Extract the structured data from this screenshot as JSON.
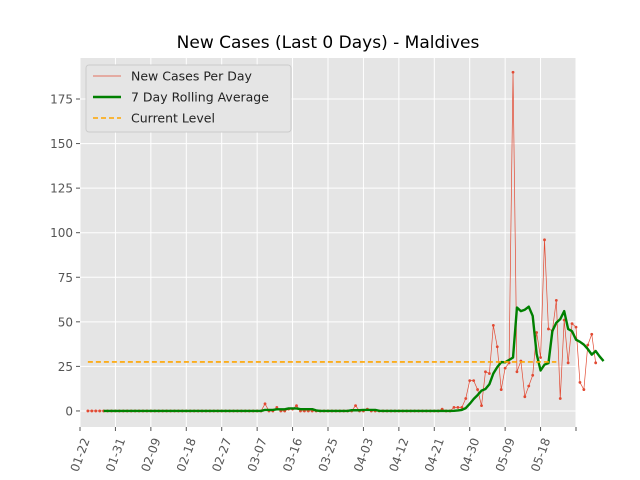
{
  "chart_data": {
    "type": "line",
    "title": "New Cases (Last 0 Days) - Maldives",
    "xlabel": "",
    "ylabel": "",
    "x_tick_labels": [
      "01-22",
      "01-31",
      "02-09",
      "02-18",
      "02-27",
      "03-07",
      "03-16",
      "03-25",
      "04-03",
      "04-12",
      "04-21",
      "04-30",
      "05-09",
      "05-18"
    ],
    "y_tick_labels": [
      "0",
      "25",
      "50",
      "75",
      "100",
      "125",
      "150",
      "175"
    ],
    "ylim": [
      -9,
      198
    ],
    "grid": true,
    "legend_position": "top-left",
    "start_date": "2020-01-22",
    "series": [
      {
        "name": "New Cases Per Day",
        "color": "#e24a33",
        "style": "thin-line-with-points",
        "start": "2020-01-24",
        "values": [
          0,
          0,
          0,
          0,
          0,
          0,
          0,
          0,
          0,
          0,
          0,
          0,
          0,
          0,
          0,
          0,
          0,
          0,
          0,
          0,
          0,
          0,
          0,
          0,
          0,
          0,
          0,
          0,
          0,
          0,
          0,
          0,
          0,
          0,
          0,
          0,
          0,
          0,
          0,
          0,
          0,
          0,
          0,
          0,
          0,
          4,
          0,
          0,
          2,
          0,
          0,
          1,
          1,
          3,
          0,
          0,
          0,
          0,
          0,
          0,
          0,
          0,
          0,
          0,
          0,
          0,
          0,
          0,
          3,
          0,
          0,
          1,
          0,
          0,
          0,
          0,
          0,
          0,
          0,
          0,
          0,
          0,
          0,
          0,
          0,
          0,
          0,
          0,
          0,
          0,
          1,
          0,
          0,
          2,
          2,
          2,
          7,
          17,
          17,
          12,
          3,
          22,
          21,
          48,
          36,
          12,
          24,
          27,
          190,
          22,
          28,
          8,
          14,
          20,
          44,
          30,
          96,
          46,
          45,
          62,
          7,
          51,
          27,
          49,
          47,
          16,
          12,
          37,
          43,
          27
        ]
      },
      {
        "name": "7 Day Rolling Average",
        "color": "#008000",
        "style": "thick-line",
        "start": "2020-01-28",
        "values": [
          0,
          0,
          0,
          0,
          0,
          0,
          0,
          0,
          0,
          0,
          0,
          0,
          0,
          0,
          0,
          0,
          0,
          0,
          0,
          0,
          0,
          0,
          0,
          0,
          0,
          0,
          0,
          0,
          0,
          0,
          0,
          0,
          0,
          0,
          0,
          0,
          0,
          0,
          0,
          0,
          0,
          0.6,
          0.6,
          0.6,
          0.9,
          0.9,
          0.9,
          1.4,
          1.4,
          1.4,
          1,
          1,
          1,
          1,
          0.3,
          0,
          0,
          0,
          0,
          0,
          0,
          0,
          0,
          0.4,
          0.4,
          0.4,
          0.6,
          0.6,
          0.6,
          0.6,
          0.1,
          0,
          0,
          0,
          0,
          0,
          0,
          0,
          0,
          0,
          0,
          0,
          0,
          0,
          0,
          0,
          0,
          0,
          0,
          0.1,
          0.3,
          0.6,
          1.6,
          4,
          6.7,
          8.9,
          11.4,
          12.3,
          15,
          21,
          24.6,
          27.4,
          27.3,
          28.6,
          30,
          58,
          56,
          56.8,
          58.5,
          53.3,
          32,
          22.7,
          26,
          26.8,
          44.9,
          49.5,
          51.5,
          56,
          46,
          44.7,
          40,
          38.8,
          37.2,
          34.7,
          31.6,
          33.6,
          30.6,
          28
        ]
      },
      {
        "name": "Current Level",
        "color": "#ffa500",
        "style": "dashed",
        "start": "2020-01-24",
        "end": "2020-05-22",
        "value": 27.5
      }
    ]
  }
}
